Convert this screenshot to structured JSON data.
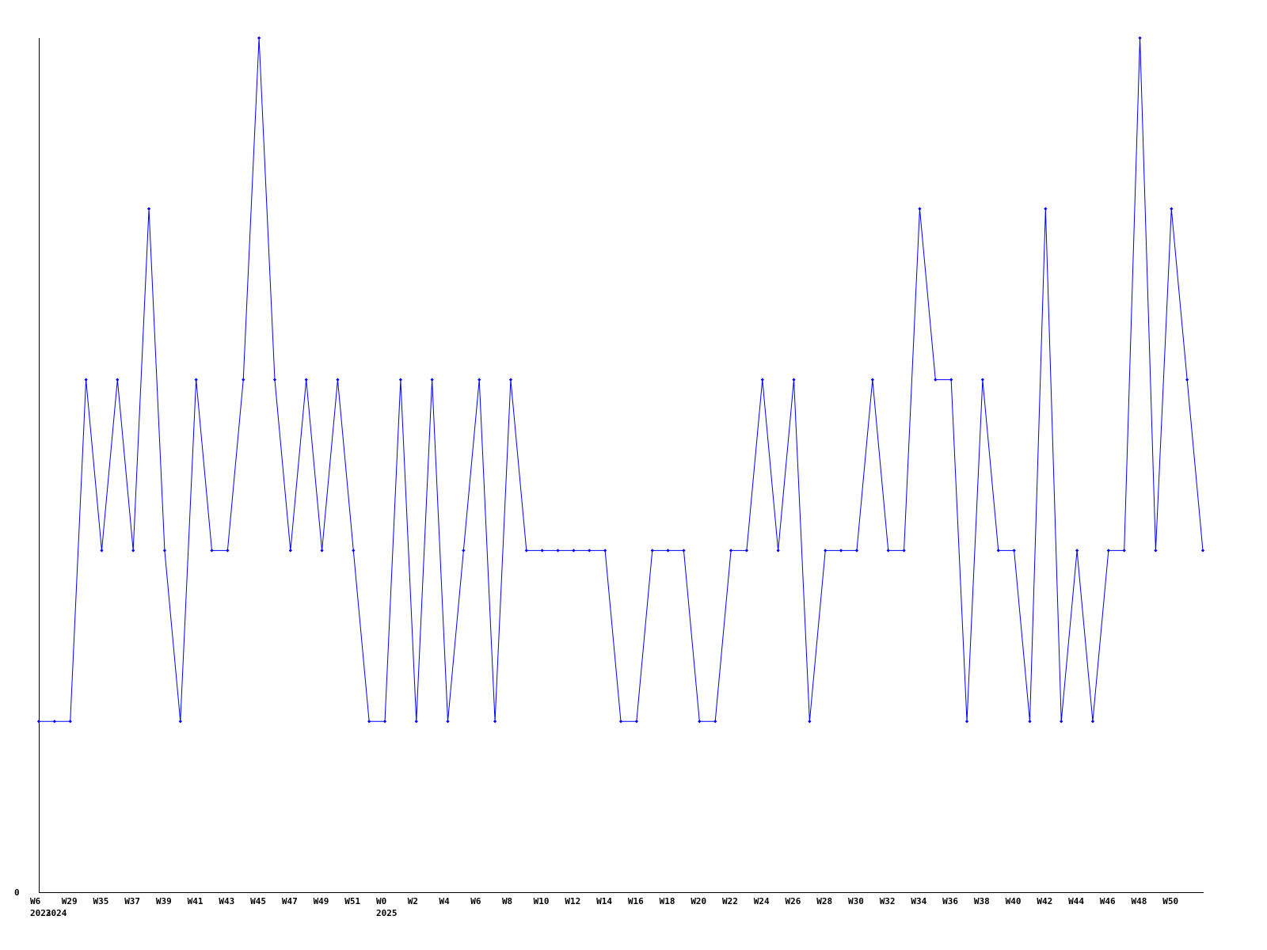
{
  "chart_data": {
    "type": "line",
    "title": "",
    "xlabel": "",
    "ylabel": "",
    "ylim": [
      0,
      5
    ],
    "y_tick_labels": [
      "0"
    ],
    "grid": false,
    "line_color": "#0000ff",
    "axis_color": "#000000",
    "categories": [
      "W6",
      "",
      "W29",
      "",
      "W35",
      "",
      "W37",
      "",
      "W39",
      "",
      "W41",
      "",
      "W43",
      "",
      "W45",
      "",
      "W47",
      "",
      "W49",
      "",
      "W51",
      "",
      "W0",
      "",
      "W2",
      "",
      "W4",
      "",
      "W6",
      "",
      "W8",
      "",
      "W10",
      "",
      "W12",
      "",
      "W14",
      "",
      "W16",
      "",
      "W18",
      "",
      "W20",
      "",
      "W22",
      "",
      "W24",
      "",
      "W26",
      "",
      "W28",
      "",
      "W30",
      "",
      "W32",
      "",
      "W34",
      "",
      "W36",
      "",
      "W38",
      "",
      "W40",
      "",
      "W42",
      "",
      "W44",
      "",
      "W46",
      "",
      "W48",
      "",
      "W50",
      "",
      ""
    ],
    "year_labels": [
      {
        "index": 0,
        "text": "2023"
      },
      {
        "index": 1,
        "text": "2024"
      },
      {
        "index": 22,
        "text": "2025"
      }
    ],
    "values": [
      1,
      1,
      1,
      3,
      2,
      3,
      2,
      4,
      2,
      1,
      3,
      2,
      2,
      3,
      5,
      3,
      2,
      3,
      2,
      3,
      2,
      1,
      1,
      3,
      1,
      3,
      1,
      2,
      3,
      1,
      3,
      2,
      2,
      2,
      2,
      2,
      2,
      1,
      1,
      2,
      2,
      2,
      1,
      1,
      2,
      2,
      3,
      2,
      3,
      1,
      2,
      2,
      2,
      3,
      2,
      2,
      4,
      3,
      3,
      1,
      3,
      2,
      2,
      1,
      4,
      1,
      2,
      1,
      2,
      2,
      5,
      2,
      4,
      3,
      2
    ]
  }
}
